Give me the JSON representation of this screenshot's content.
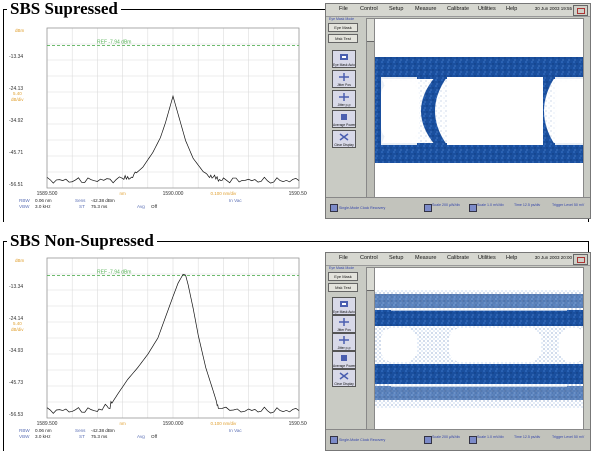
{
  "sections": [
    {
      "title": "SBS Supressed",
      "osa": {
        "ref_label": "REF -7.94 dBm",
        "y_ticks": [
          "-13.34",
          "-24.13",
          "-34.92",
          "-45.71",
          "-56.51"
        ],
        "y_top_unit": "dBm",
        "y_scale": [
          "5.40",
          "dB/div"
        ],
        "x_ticks": [
          "1589.500",
          "1590.000",
          "1590.500"
        ],
        "x_unit": "nm",
        "x_span": "0.100 nm/div",
        "in_vac": "In Vac",
        "rbw_label": "RBW",
        "rbw_value": "0.06 nm",
        "sens_label": "Sens",
        "sens_value": "-42.38 dBm",
        "vbw_label": "VBW",
        "vbw_value": "3.0 kHz",
        "st_label": "ST",
        "st_value": "75.3 ms",
        "avg_label": "Avg",
        "avg_value": "Off"
      },
      "scope": {
        "date": "30 Jun 2003 19:55",
        "status": "Single-Mode Clock Recovery"
      }
    },
    {
      "title": "SBS Non-Supressed",
      "osa": {
        "ref_label": "REF -7.94 dBm",
        "y_ticks": [
          "-13.34",
          "-24.14",
          "-34.93",
          "-45.73",
          "-56.53"
        ],
        "y_top_unit": "dBm",
        "y_scale": [
          "5.40",
          "dB/div"
        ],
        "x_ticks": [
          "1589.500",
          "1590.000",
          "1590.500"
        ],
        "x_unit": "nm",
        "x_span": "0.100 nm/div",
        "in_vac": "In Vac",
        "rbw_label": "RBW",
        "rbw_value": "0.06 nm",
        "sens_label": "Sens",
        "sens_value": "-42.38 dBm",
        "vbw_label": "VBW",
        "vbw_value": "3.0 kHz",
        "st_label": "ST",
        "st_value": "75.3 ms",
        "avg_label": "Avg",
        "avg_value": "Off"
      },
      "scope": {
        "date": "30 Jun 2003 20:00",
        "status": "Single-Mode Clock Recovery"
      }
    }
  ],
  "scope_menu": [
    "File",
    "Control",
    "Setup",
    "Measure",
    "Calibrate",
    "Utilities",
    "Help"
  ],
  "scope_scale_label": "Eye Mask Mode",
  "scope_run_label": "Eye Mask",
  "scope_side_buttons": [
    "Eye Mask Auto",
    "Jitter Pos",
    "Jitter p-p",
    "Average Power",
    "Clear Display"
  ],
  "scope_status_items": [
    "Scale 200 µW/div",
    "Scale 1.0 mV/div",
    "Time 12.5 ps/div",
    "Trigger Level 50 mV"
  ],
  "colors": {
    "ref_line": "#5bb35b",
    "trace": "#111111",
    "grid": "#dcdcdc",
    "axis_labels": "#5b6fb5",
    "scale_orange": "#e0a030",
    "eye_blue": "#1a4f9e",
    "scope_bg": "#c9cbc4"
  },
  "chart_data": [
    {
      "type": "line",
      "title": "SBS Supressed",
      "xlabel": "nm",
      "ylabel": "dBm",
      "xlim": [
        1589.5,
        1590.5
      ],
      "ylim": [
        -59.0,
        -5.0
      ],
      "series": [
        {
          "x": [
            1589.5,
            1589.6,
            1589.7,
            1589.8,
            1589.84,
            1589.88,
            1589.92,
            1589.95,
            1589.97,
            1589.99,
            1590.0,
            1590.01,
            1590.03,
            1590.05,
            1590.08,
            1590.12,
            1590.16,
            1590.2,
            1590.3,
            1590.4,
            1590.5
          ],
          "y": [
            -56.4,
            -56.5,
            -56.3,
            -56.2,
            -55.0,
            -52.0,
            -47.0,
            -42.0,
            -37.0,
            -31.0,
            -28.0,
            -31.0,
            -37.0,
            -43.0,
            -49.0,
            -53.5,
            -55.5,
            -56.2,
            -56.4,
            -56.5,
            -56.5
          ]
        }
      ]
    },
    {
      "type": "line",
      "title": "SBS Non-Supressed",
      "xlabel": "nm",
      "ylabel": "dBm",
      "xlim": [
        1589.5,
        1590.5
      ],
      "ylim": [
        -59.0,
        -5.0
      ],
      "series": [
        {
          "x": [
            1589.5,
            1589.6,
            1589.7,
            1589.75,
            1589.78,
            1589.82,
            1589.86,
            1589.9,
            1589.94,
            1589.97,
            1590.0,
            1590.02,
            1590.04,
            1590.05,
            1590.06,
            1590.08,
            1590.1,
            1590.13,
            1590.16,
            1590.18,
            1590.3,
            1590.4,
            1590.5
          ],
          "y": [
            -56.5,
            -56.4,
            -56.3,
            -55.0,
            -51.0,
            -46.0,
            -42.0,
            -37.5,
            -32.0,
            -25.0,
            -18.0,
            -13.5,
            -10.5,
            -10.8,
            -14.0,
            -22.0,
            -31.0,
            -42.0,
            -50.0,
            -55.5,
            -56.3,
            -56.5,
            -56.5
          ]
        }
      ]
    }
  ]
}
